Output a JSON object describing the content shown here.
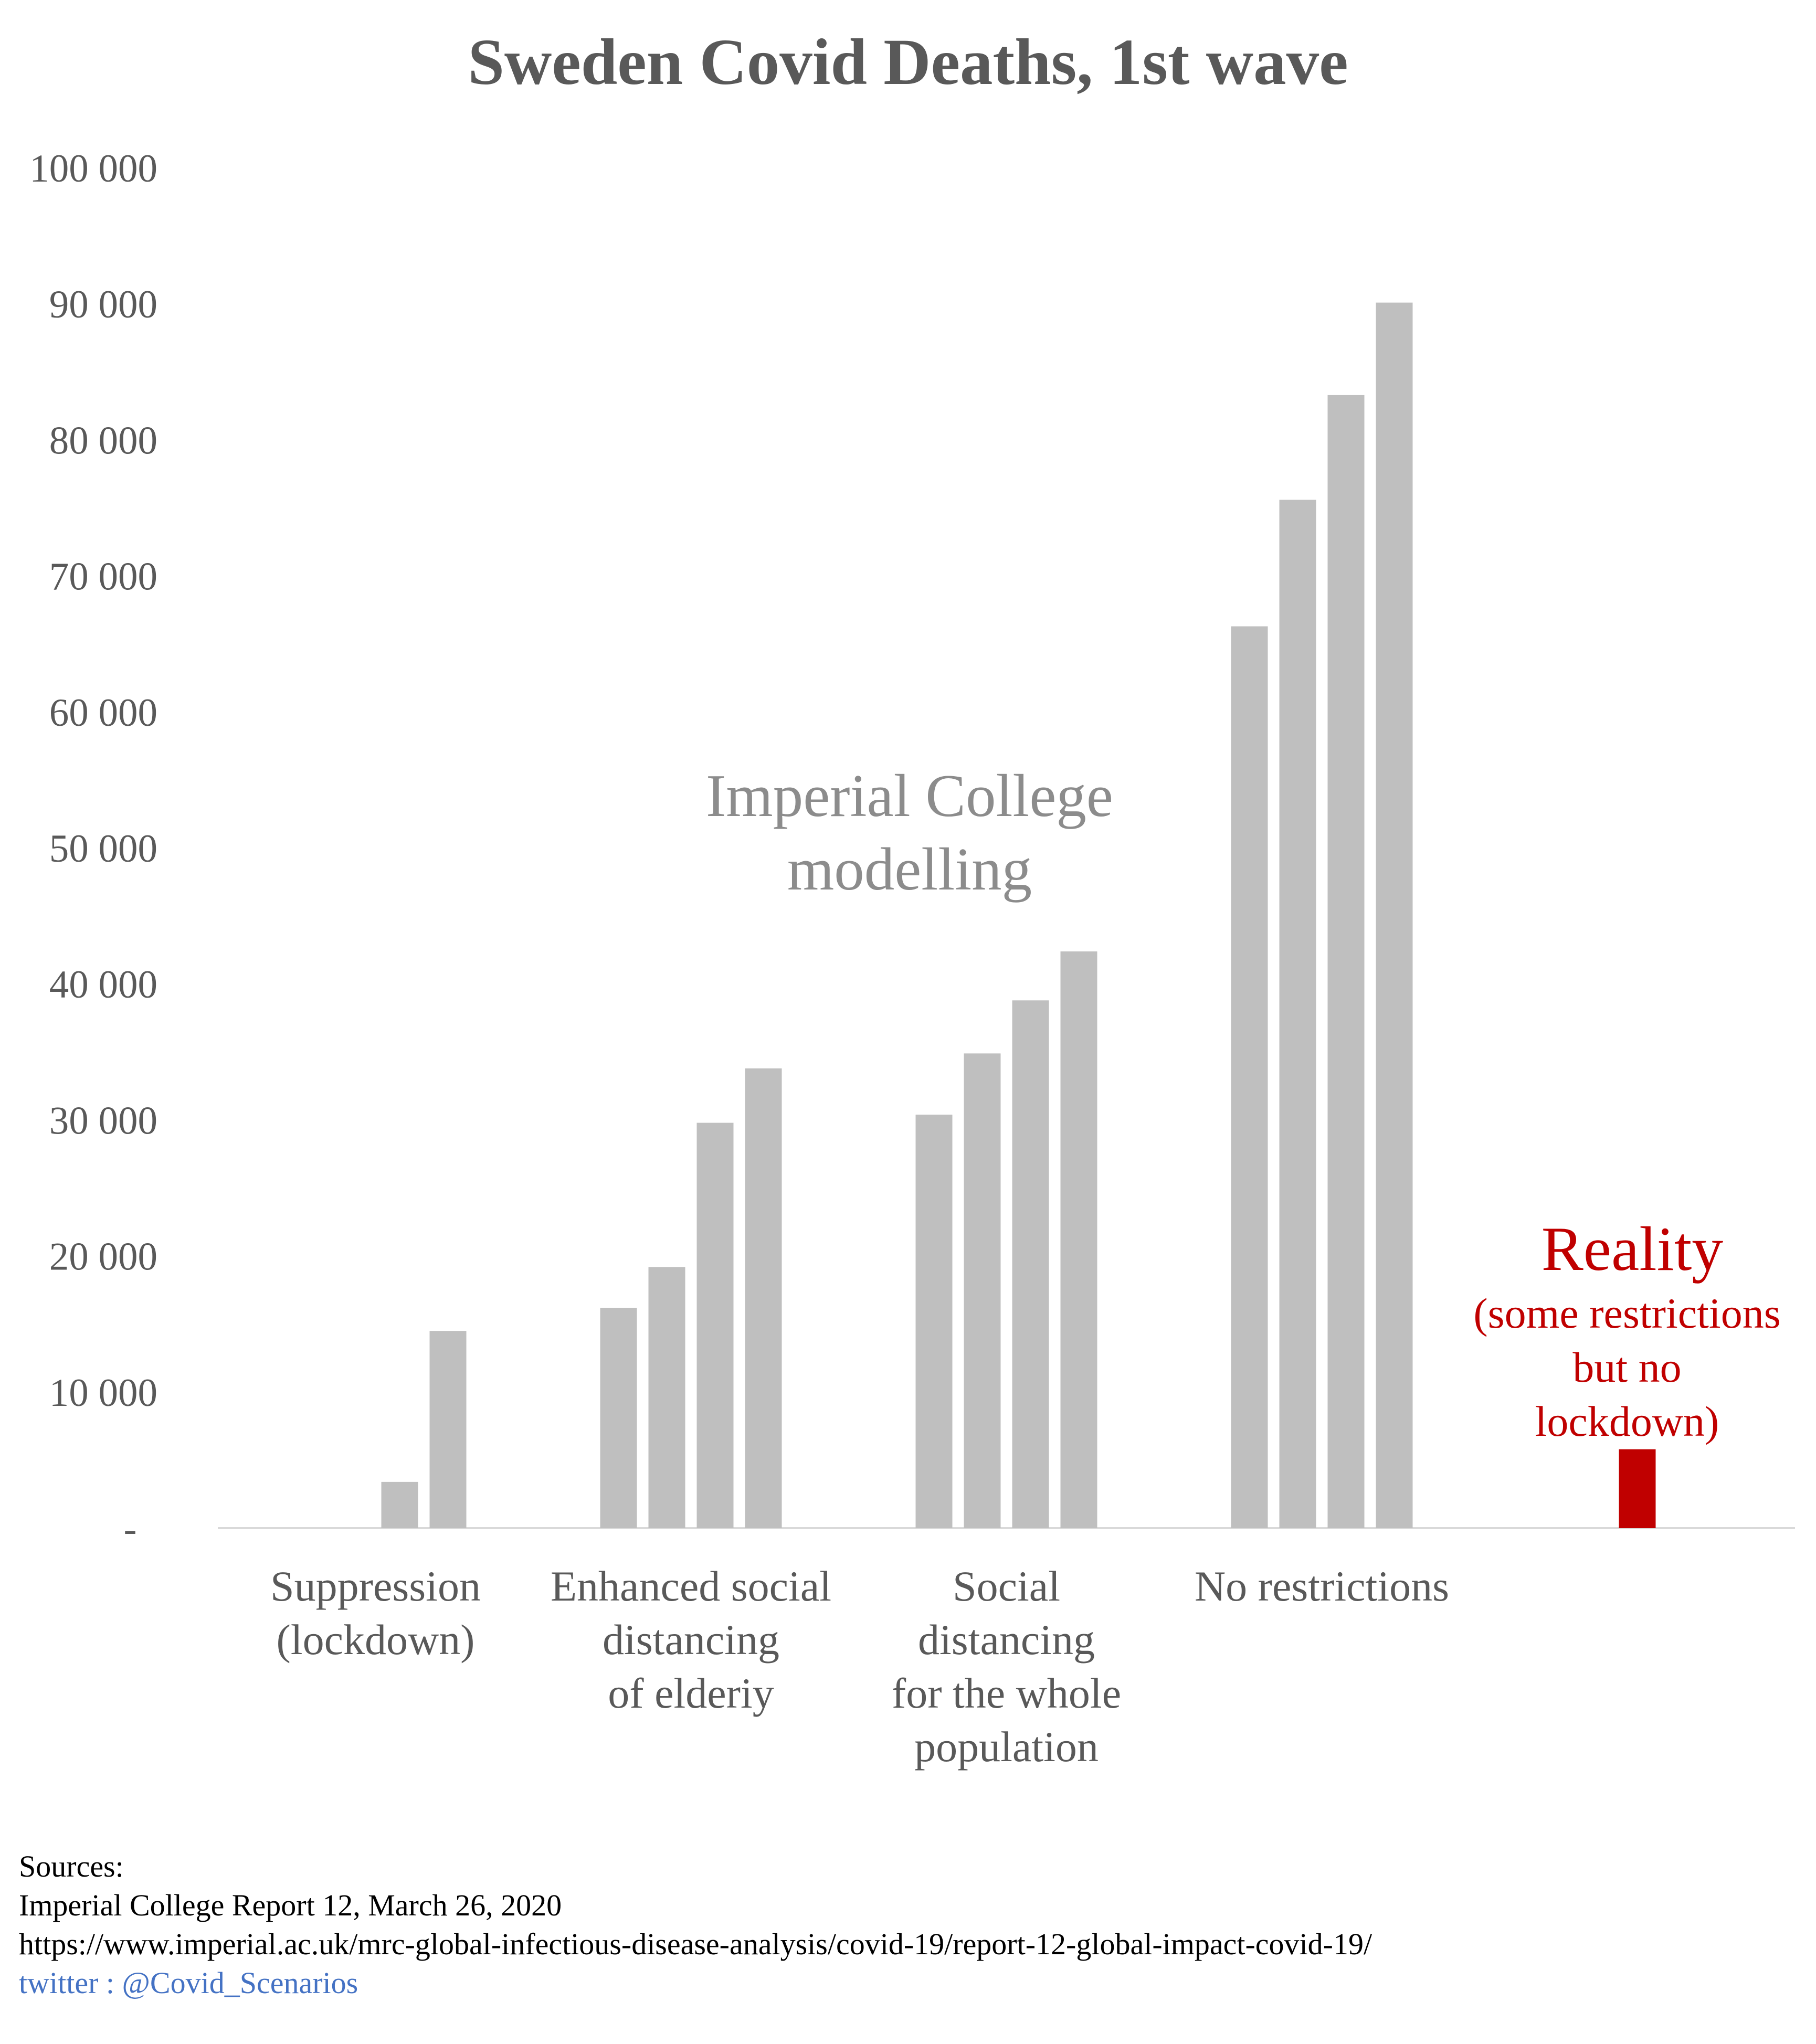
{
  "chart_data": {
    "type": "bar",
    "title": "Sweden Covid Deaths, 1st wave",
    "xlabel": "",
    "ylabel": "",
    "ylim": [
      0,
      100000
    ],
    "yticks": [
      {
        "value": 0,
        "label": "-"
      },
      {
        "value": 10000,
        "label": "10 000"
      },
      {
        "value": 20000,
        "label": "20 000"
      },
      {
        "value": 30000,
        "label": "30 000"
      },
      {
        "value": 40000,
        "label": "40 000"
      },
      {
        "value": 50000,
        "label": "50 000"
      },
      {
        "value": 60000,
        "label": "60 000"
      },
      {
        "value": 70000,
        "label": "70 000"
      },
      {
        "value": 80000,
        "label": "80 000"
      },
      {
        "value": 90000,
        "label": "90 000"
      },
      {
        "value": 100000,
        "label": "100 000"
      }
    ],
    "grid": false,
    "categories": [
      {
        "label_lines": [
          "Suppression",
          "(lockdown)"
        ],
        "values": [
          null,
          null,
          3400,
          14500
        ],
        "color": "#bfbfbf"
      },
      {
        "label_lines": [
          "Enhanced social",
          "distancing",
          "of elderiy"
        ],
        "values": [
          16200,
          19200,
          29800,
          33800
        ],
        "color": "#bfbfbf"
      },
      {
        "label_lines": [
          "Social",
          "distancing",
          "for the whole",
          "population"
        ],
        "values": [
          30400,
          34900,
          38800,
          42400
        ],
        "color": "#bfbfbf"
      },
      {
        "label_lines": [
          "No restrictions"
        ],
        "values": [
          66300,
          75600,
          83300,
          90100
        ],
        "color": "#bfbfbf"
      },
      {
        "label_lines": [],
        "values": [
          5800
        ],
        "color": "#c00000"
      }
    ],
    "annotations": {
      "imperial": [
        "Imperial College",
        "modelling"
      ],
      "reality_title": "Reality",
      "reality_sub": [
        "(some restrictions",
        "but no",
        "lockdown)"
      ]
    }
  },
  "sources": {
    "heading": "Sources:",
    "report": "Imperial College Report 12, March 26, 2020",
    "url": "https://www.imperial.ac.uk/mrc-global-infectious-disease-analysis/covid-19/report-12-global-impact-covid-19/",
    "twitter": "twitter : @Covid_Scenarios"
  },
  "colors": {
    "model_bar": "#bfbfbf",
    "reality_bar": "#c00000",
    "text": "#595959",
    "link": "#4472c4"
  }
}
